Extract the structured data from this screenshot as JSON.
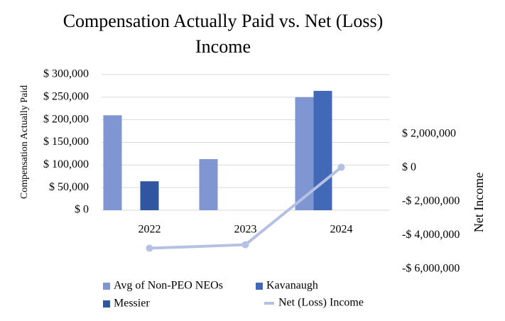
{
  "chart_data": {
    "type": "bar",
    "title": "Compensation Actually Paid vs. Net (Loss) Income",
    "y_label": "Compensation Actually Paid",
    "y2_label": "Net Income",
    "categories": [
      "2022",
      "2023",
      "2024"
    ],
    "series": [
      {
        "name": "Avg of Non-PEO NEOs",
        "color": "#7f96d3",
        "values": [
          210000,
          113000,
          250000
        ]
      },
      {
        "name": "Kavanaugh",
        "color": "#4169b8",
        "values": [
          null,
          null,
          264000
        ]
      },
      {
        "name": "Messier",
        "color": "#2f569e",
        "values": [
          64000,
          null,
          null
        ]
      },
      {
        "name": "Net (Loss) Income",
        "type": "line",
        "axis": "y2",
        "color": "#b4c1e2",
        "values": [
          -4760000,
          -4550000,
          40000
        ]
      }
    ],
    "ylim": [
      0,
      300000
    ],
    "yticks": [
      {
        "value": 0,
        "label": "$ 0"
      },
      {
        "value": 50000,
        "label": "$ 50,000"
      },
      {
        "value": 100000,
        "label": "$ 100,000"
      },
      {
        "value": 150000,
        "label": "$ 150,000"
      },
      {
        "value": 200000,
        "label": "$ 200,000"
      },
      {
        "value": 250000,
        "label": "$ 250,000"
      },
      {
        "value": 300000,
        "label": "$ 300,000"
      }
    ],
    "y2lim": [
      -6000000,
      2000000
    ],
    "y2ticks": [
      {
        "value": -6000000,
        "label": "-$ 6,000,000"
      },
      {
        "value": -4000000,
        "label": "-$ 4,000,000"
      },
      {
        "value": -2000000,
        "label": "-$ 2,000,000"
      },
      {
        "value": 0,
        "label": "$ 0"
      },
      {
        "value": 2000000,
        "label": "$ 2,000,000"
      }
    ],
    "grid": true
  }
}
